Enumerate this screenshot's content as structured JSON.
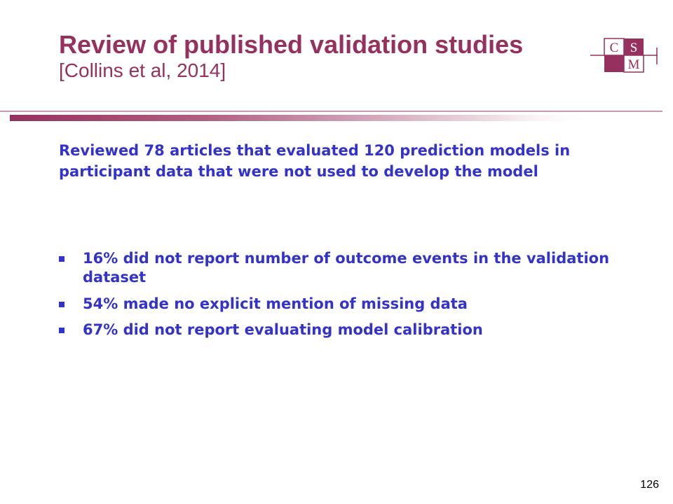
{
  "colors": {
    "title": "#96305f",
    "body_text": "#3333cc",
    "rule": "#96305f",
    "logo": "#96305f"
  },
  "header": {
    "title": "Review of published validation studies",
    "citation": "[Collins et al, 2014]"
  },
  "logo": {
    "letters": [
      "C",
      "S",
      "M"
    ]
  },
  "body": {
    "intro": "Reviewed 78 articles that evaluated 120 prediction models in participant data that were not used to develop the model",
    "bullets": [
      "16% did not report number of outcome events in the validation dataset",
      "54% made no explicit mention of missing data",
      "67% did not report evaluating model calibration"
    ]
  },
  "footer": {
    "page_number": "126"
  }
}
